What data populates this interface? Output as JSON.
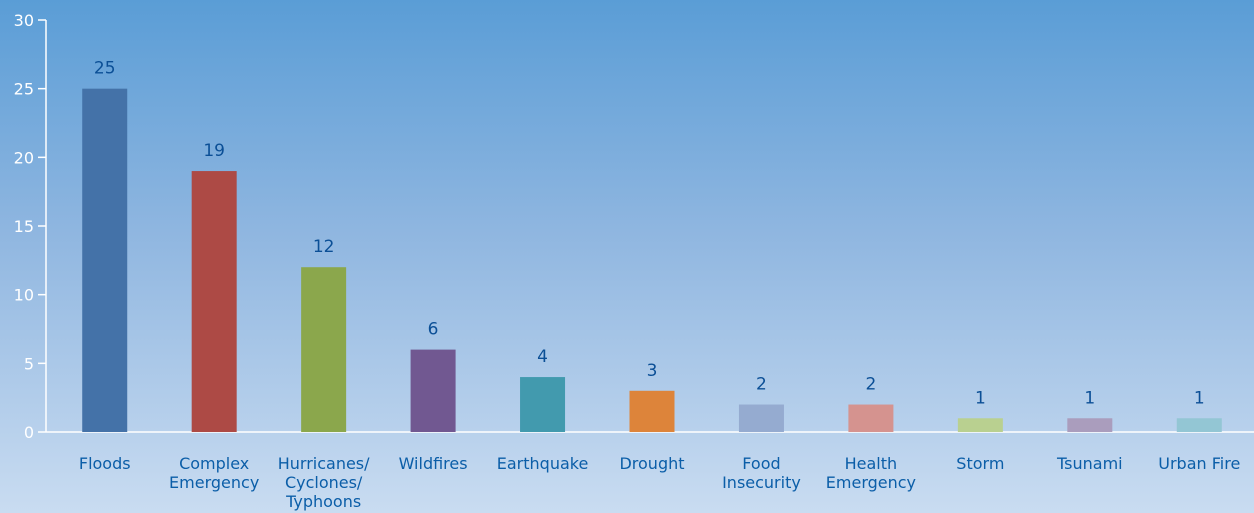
{
  "chart_data": {
    "type": "bar",
    "categories": [
      [
        "Floods"
      ],
      [
        "Complex",
        "Emergency"
      ],
      [
        "Hurricanes/",
        "Cyclones/",
        "Typhoons"
      ],
      [
        "Wildfires"
      ],
      [
        "Earthquake"
      ],
      [
        "Drought"
      ],
      [
        "Food",
        "Insecurity"
      ],
      [
        "Health",
        "Emergency"
      ],
      [
        "Storm"
      ],
      [
        "Tsunami"
      ],
      [
        "Urban Fire"
      ]
    ],
    "values": [
      25,
      19,
      12,
      6,
      4,
      3,
      2,
      2,
      1,
      1,
      1
    ],
    "value_labels": [
      "25",
      "19",
      "12",
      "6",
      "4",
      "3",
      "2",
      "2",
      "1",
      "1",
      "1"
    ],
    "bar_colors": [
      "#4472a8",
      "#ad4a45",
      "#8ba74c",
      "#715891",
      "#429aae",
      "#dd843a",
      "#95abd0",
      "#d5938f",
      "#b9d090",
      "#aa9dbd",
      "#93c6d4"
    ],
    "yticks": [
      0,
      5,
      10,
      15,
      20,
      25,
      30
    ],
    "ylim": [
      0,
      30
    ],
    "title": "",
    "xlabel": "",
    "ylabel": "",
    "grid": false,
    "legend": "none"
  }
}
